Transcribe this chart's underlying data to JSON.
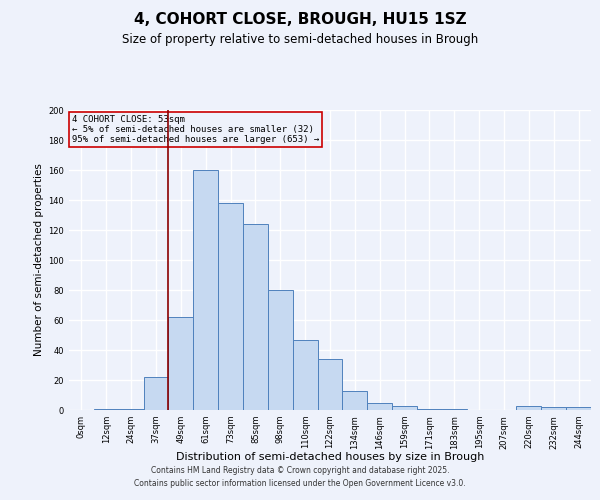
{
  "title": "4, COHORT CLOSE, BROUGH, HU15 1SZ",
  "subtitle": "Size of property relative to semi-detached houses in Brough",
  "xlabel": "Distribution of semi-detached houses by size in Brough",
  "ylabel": "Number of semi-detached properties",
  "bar_labels": [
    "0sqm",
    "12sqm",
    "24sqm",
    "37sqm",
    "49sqm",
    "61sqm",
    "73sqm",
    "85sqm",
    "98sqm",
    "110sqm",
    "122sqm",
    "134sqm",
    "146sqm",
    "159sqm",
    "171sqm",
    "183sqm",
    "195sqm",
    "207sqm",
    "220sqm",
    "232sqm",
    "244sqm"
  ],
  "bar_heights": [
    0,
    1,
    1,
    22,
    62,
    160,
    138,
    124,
    80,
    47,
    34,
    13,
    5,
    3,
    1,
    1,
    0,
    0,
    3,
    2,
    2
  ],
  "bar_color": "#c6d9f1",
  "bar_edgecolor": "#4f81bd",
  "ylim": [
    0,
    200
  ],
  "yticks": [
    0,
    20,
    40,
    60,
    80,
    100,
    120,
    140,
    160,
    180,
    200
  ],
  "vline_x_idx": 4,
  "vline_color": "#8b0000",
  "annotation_title": "4 COHORT CLOSE: 53sqm",
  "annotation_line1": "← 5% of semi-detached houses are smaller (32)",
  "annotation_line2": "95% of semi-detached houses are larger (653) →",
  "annotation_box_edgecolor": "#cc0000",
  "footer1": "Contains HM Land Registry data © Crown copyright and database right 2025.",
  "footer2": "Contains public sector information licensed under the Open Government Licence v3.0.",
  "bg_color": "#eef2fb",
  "grid_color": "#ffffff",
  "title_fontsize": 11,
  "subtitle_fontsize": 8.5,
  "xlabel_fontsize": 8,
  "ylabel_fontsize": 7.5,
  "tick_fontsize": 6,
  "annotation_fontsize": 6.5,
  "footer_fontsize": 5.5
}
